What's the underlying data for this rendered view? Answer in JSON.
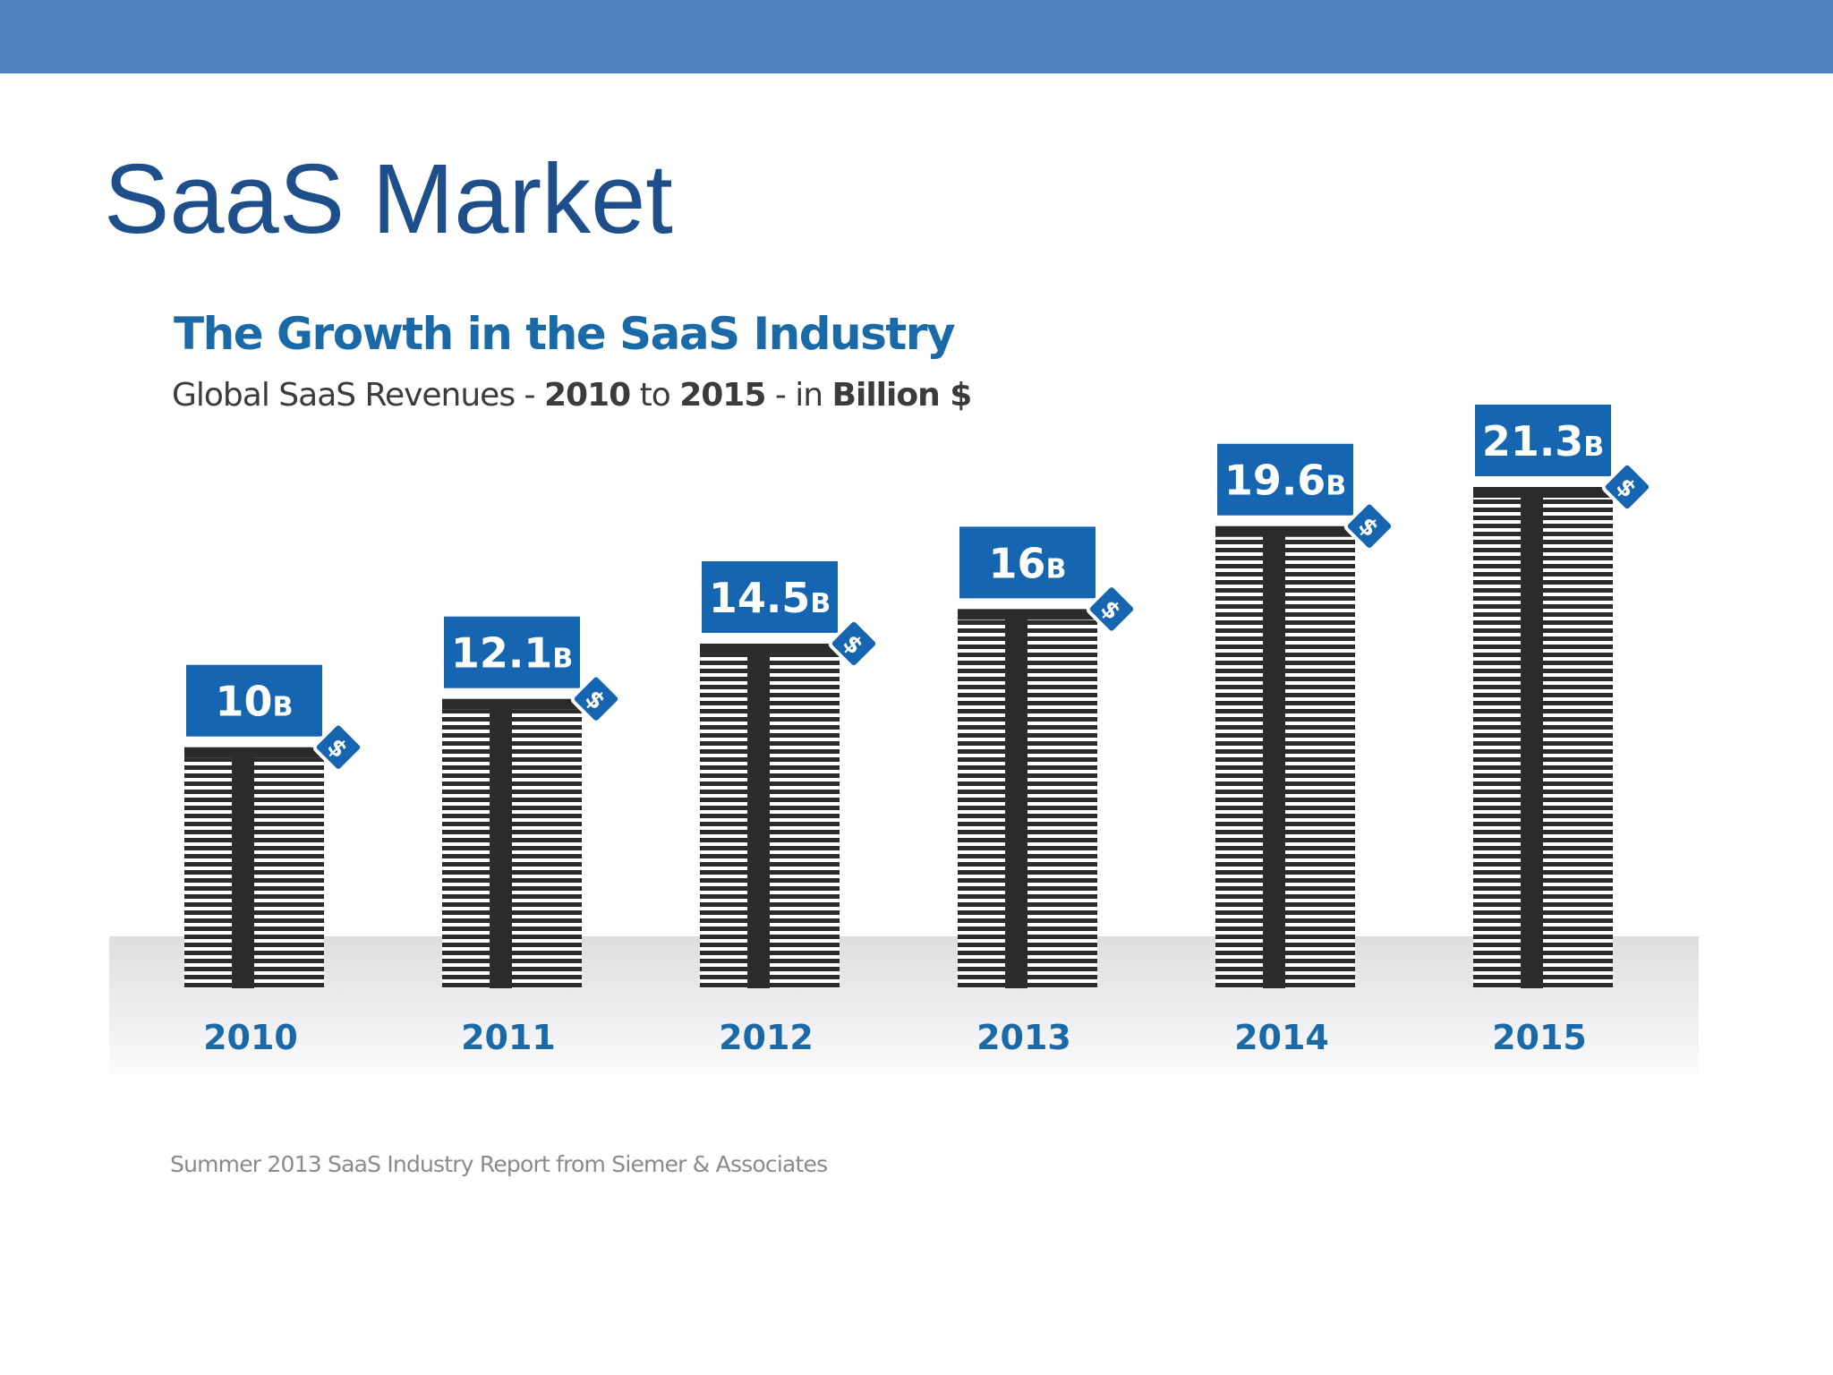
{
  "slide": {
    "title": "SaaS Market"
  },
  "chart_data": {
    "type": "bar",
    "title": "The Growth in the SaaS Industry",
    "subtitle": {
      "prefix": "Global SaaS Revenues - ",
      "start_year": "2010",
      "connector": " to ",
      "end_year": "2015",
      "separator": " - in ",
      "unit": "Billion $"
    },
    "categories": [
      "2010",
      "2011",
      "2012",
      "2013",
      "2014",
      "2015"
    ],
    "values": [
      10,
      12.1,
      14.5,
      16,
      19.6,
      21.3
    ],
    "value_labels": [
      "10",
      "12.1",
      "14.5",
      "16",
      "19.6",
      "21.3"
    ],
    "value_suffix": "B",
    "tag_symbol": "$",
    "ylim": [
      0,
      21.3
    ],
    "grid": false,
    "colors": {
      "label_box": "#1565b0",
      "bar_dark": "#2b2b2b",
      "category_text": "#1b6aa8"
    },
    "source": "Summer 2013 SaaS Industry Report from Siemer & Associates"
  }
}
